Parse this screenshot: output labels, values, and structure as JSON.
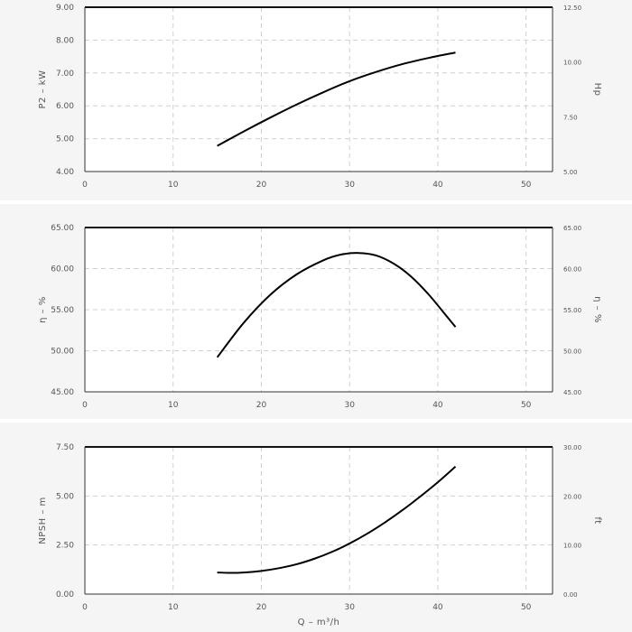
{
  "chart_data": [
    {
      "type": "line",
      "ylabel": "P2 – kW",
      "y2label": "Hp",
      "xlim": [
        0,
        53
      ],
      "ylim": [
        4,
        9
      ],
      "y2lim": [
        5,
        12.5
      ],
      "xticks": [
        0,
        10,
        20,
        30,
        40,
        50
      ],
      "yticks": [
        "4.00",
        "5.00",
        "6.00",
        "7.00",
        "8.00",
        "9.00"
      ],
      "y2ticks": [
        "5.00",
        "7.50",
        "10.00",
        "12.50"
      ],
      "grid": true,
      "series": [
        {
          "x": [
            15,
            18,
            21,
            24,
            27,
            30,
            33,
            36,
            39,
            42
          ],
          "values": [
            4.78,
            5.22,
            5.64,
            6.04,
            6.41,
            6.75,
            7.03,
            7.27,
            7.46,
            7.62
          ]
        }
      ]
    },
    {
      "type": "line",
      "ylabel": "η – %",
      "y2label": "η – %",
      "xlim": [
        0,
        53
      ],
      "ylim": [
        45,
        65
      ],
      "y2lim": [
        45,
        65
      ],
      "xticks": [
        0,
        10,
        20,
        30,
        40,
        50
      ],
      "yticks": [
        "45.00",
        "50.00",
        "55.00",
        "60.00",
        "65.00"
      ],
      "y2ticks": [
        "45.00",
        "50.00",
        "55.00",
        "60.00",
        "65.00"
      ],
      "grid": true,
      "series": [
        {
          "x": [
            15,
            18,
            21,
            24,
            27,
            29,
            31,
            33,
            35,
            37,
            39,
            41,
            42
          ],
          "values": [
            49.2,
            53.4,
            56.8,
            59.3,
            61.0,
            61.7,
            61.9,
            61.6,
            60.6,
            59.0,
            56.8,
            54.2,
            52.9
          ]
        }
      ]
    },
    {
      "type": "line",
      "ylabel": "NPSH – m",
      "y2label": "ft",
      "xlabel": "Q – m³/h",
      "xlim": [
        0,
        53
      ],
      "ylim": [
        0,
        7.5
      ],
      "y2lim": [
        0,
        30
      ],
      "xticks": [
        0,
        10,
        20,
        30,
        40,
        50
      ],
      "yticks": [
        "0.00",
        "2.50",
        "5.00",
        "7.50"
      ],
      "y2ticks": [
        "0.00",
        "10.00",
        "20.00",
        "30.00"
      ],
      "grid": true,
      "series": [
        {
          "x": [
            15,
            16.5,
            18,
            20,
            22,
            24,
            26,
            28,
            30,
            32,
            34,
            36,
            38,
            40,
            42
          ],
          "values": [
            1.1,
            1.08,
            1.1,
            1.18,
            1.32,
            1.52,
            1.8,
            2.15,
            2.58,
            3.08,
            3.65,
            4.28,
            4.97,
            5.7,
            6.5
          ]
        }
      ]
    }
  ]
}
